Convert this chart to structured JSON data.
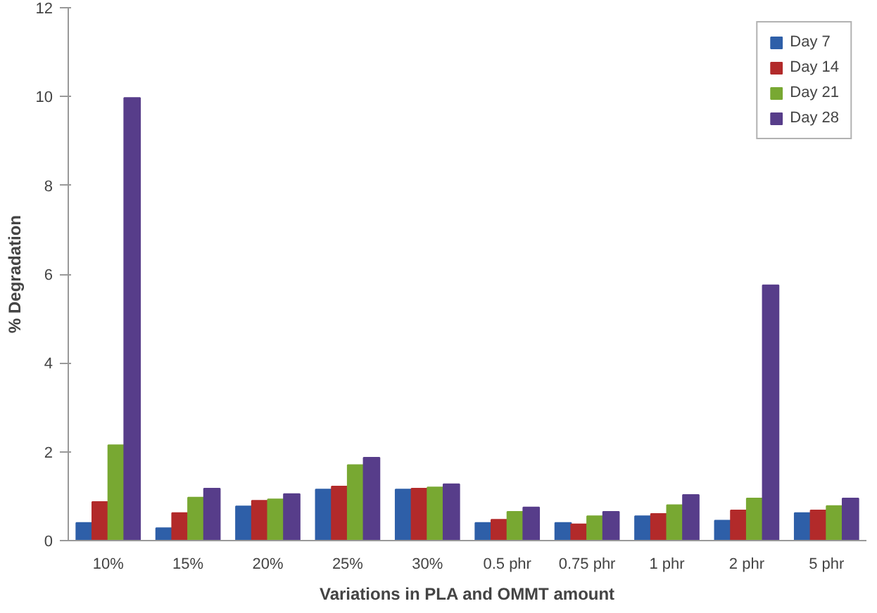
{
  "chart_data": {
    "type": "bar",
    "xlabel": "Variations in PLA and OMMT amount",
    "ylabel": "% Degradation",
    "categories": [
      "10%",
      "15%",
      "20%",
      "25%",
      "30%",
      "0.5 phr",
      "0.75 phr",
      "1 phr",
      "2 phr",
      "5 phr"
    ],
    "series": [
      {
        "name": "Day 7",
        "color": "#2e5fa8",
        "values": [
          0.4,
          0.28,
          0.77,
          1.15,
          1.15,
          0.4,
          0.4,
          0.55,
          0.45,
          0.62
        ]
      },
      {
        "name": "Day 14",
        "color": "#b22a2a",
        "values": [
          0.87,
          0.62,
          0.9,
          1.22,
          1.17,
          0.47,
          0.37,
          0.6,
          0.68,
          0.68
        ]
      },
      {
        "name": "Day 21",
        "color": "#78a832",
        "values": [
          2.15,
          0.97,
          0.93,
          1.7,
          1.2,
          0.65,
          0.55,
          0.8,
          0.95,
          0.78
        ]
      },
      {
        "name": "Day 28",
        "color": "#573d8a",
        "values": [
          9.97,
          1.17,
          1.05,
          1.87,
          1.27,
          0.75,
          0.65,
          1.03,
          5.75,
          0.95
        ]
      }
    ],
    "ylim": [
      0,
      12
    ],
    "yticks": [
      0,
      2,
      4,
      6,
      8,
      10,
      12
    ],
    "grid": false,
    "legend": "top right"
  }
}
